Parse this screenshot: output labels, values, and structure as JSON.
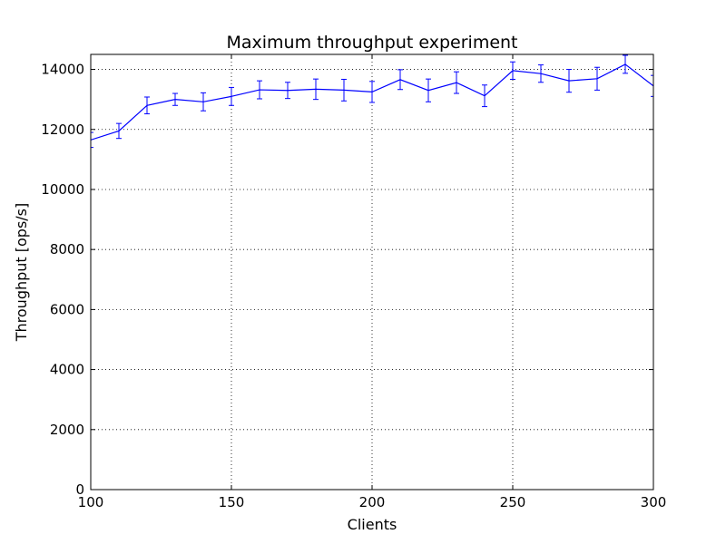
{
  "chart_data": {
    "type": "line",
    "title": "Maximum throughput experiment",
    "xlabel": "Clients",
    "ylabel": "Throughput [ops/s]",
    "xlim": [
      100,
      300
    ],
    "ylim": [
      0,
      14500
    ],
    "xticks": [
      100,
      150,
      200,
      250,
      300
    ],
    "yticks": [
      0,
      2000,
      4000,
      6000,
      8000,
      10000,
      12000,
      14000
    ],
    "grid": true,
    "grid_style": "dotted",
    "series_color": "#0000ff",
    "series": [
      {
        "x": [
          100,
          110,
          120,
          130,
          140,
          150,
          160,
          170,
          180,
          190,
          200,
          210,
          220,
          230,
          240,
          250,
          260,
          270,
          280,
          290,
          300
        ],
        "y": [
          11650,
          11950,
          12800,
          13000,
          12920,
          13100,
          13320,
          13300,
          13340,
          13310,
          13250,
          13660,
          13300,
          13560,
          13120,
          13960,
          13860,
          13620,
          13690,
          14170,
          13450
        ],
        "yerr": [
          250,
          250,
          280,
          200,
          300,
          300,
          300,
          270,
          340,
          360,
          350,
          330,
          380,
          360,
          360,
          290,
          290,
          380,
          380,
          300,
          350
        ]
      }
    ]
  }
}
